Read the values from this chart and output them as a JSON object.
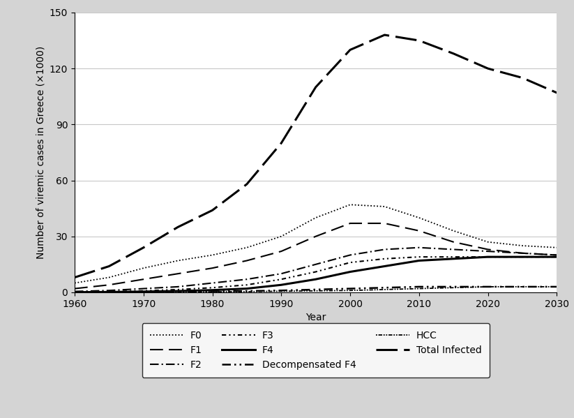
{
  "years": [
    1960,
    1965,
    1970,
    1975,
    1980,
    1985,
    1990,
    1995,
    2000,
    2005,
    2010,
    2015,
    2020,
    2025,
    2030
  ],
  "F0": [
    5,
    8,
    13,
    17,
    20,
    24,
    30,
    40,
    47,
    46,
    40,
    33,
    27,
    25,
    24
  ],
  "F1": [
    2,
    4,
    7,
    10,
    13,
    17,
    22,
    30,
    37,
    37,
    33,
    27,
    23,
    21,
    20
  ],
  "F2": [
    0.5,
    1,
    2,
    3,
    5,
    7,
    10,
    15,
    20,
    23,
    24,
    23,
    22,
    21,
    20
  ],
  "F3": [
    0.2,
    0.4,
    0.8,
    1.5,
    2.5,
    4,
    7,
    11,
    16,
    18,
    19,
    19,
    19,
    19,
    19
  ],
  "F4": [
    0.1,
    0.2,
    0.4,
    0.7,
    1.2,
    2,
    4,
    7,
    11,
    14,
    17,
    18,
    19,
    19,
    19
  ],
  "Decompensated_F4": [
    0.05,
    0.1,
    0.2,
    0.3,
    0.5,
    0.7,
    1,
    1.5,
    2,
    2.5,
    3,
    3,
    3,
    3,
    3
  ],
  "HCC": [
    0.05,
    0.08,
    0.1,
    0.2,
    0.3,
    0.4,
    0.6,
    0.8,
    1,
    1.5,
    2,
    2.5,
    3,
    3,
    3
  ],
  "Total_Infected": [
    8,
    14,
    24,
    35,
    44,
    58,
    80,
    110,
    130,
    138,
    135,
    128,
    120,
    115,
    107
  ],
  "xlabel": "Year",
  "ylabel": "Number of viremic cases in Greece (×1000)",
  "xlim": [
    1960,
    2030
  ],
  "ylim": [
    0,
    150
  ],
  "yticks": [
    0,
    30,
    60,
    90,
    120,
    150
  ],
  "xticks": [
    1960,
    1970,
    1980,
    1990,
    2000,
    2010,
    2020,
    2030
  ],
  "background_color": "#d4d4d4",
  "plot_background": "#ffffff",
  "grid_color": "#c8c8c8",
  "series_order": [
    "F0",
    "F1",
    "F2",
    "F3",
    "F4",
    "Decompensated_F4",
    "HCC",
    "Total_Infected"
  ],
  "legend_labels": [
    "F0",
    "F1",
    "F2",
    "F3",
    "F4",
    "Decompensated F4",
    "HCC",
    "Total Infected"
  ],
  "legend_ncol": 3,
  "title_fontsize": 10,
  "axis_fontsize": 10,
  "tick_fontsize": 10
}
